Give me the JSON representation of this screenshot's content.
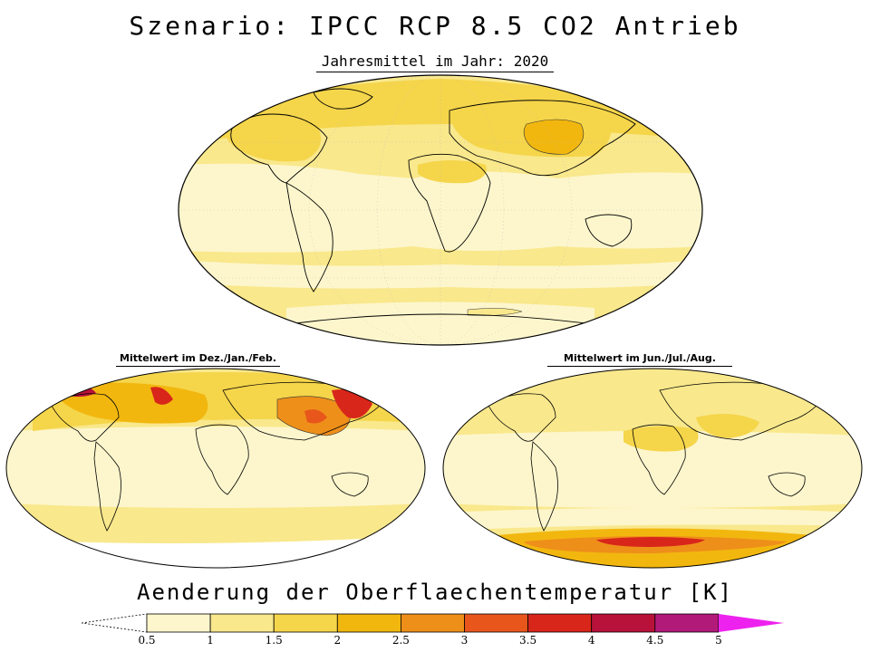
{
  "title": "Szenario: IPCC RCP 8.5 CO2 Antrieb",
  "subtitle": "Jahresmittel im Jahr: 2020",
  "panels": {
    "annual": {
      "label": ""
    },
    "djf": {
      "label": "Mittelwert im Dez./Jan./Feb."
    },
    "jja": {
      "label": "Mittelwert im Jun./Jul./Aug."
    }
  },
  "legend": {
    "title": "Aenderung der Oberflaechentemperatur [K]",
    "ticks": [
      "0.5",
      "1",
      "1.5",
      "2",
      "2.5",
      "3",
      "3.5",
      "4",
      "4.5",
      "5"
    ],
    "colors": {
      "below": "#ffffff",
      "0.5-1": "#fdf6cc",
      "1-1.5": "#f9e88c",
      "1.5-2": "#f5d54a",
      "2-2.5": "#f2b70f",
      "2.5-3": "#ee8f1a",
      "3-3.5": "#e8561c",
      "3.5-4": "#d8261a",
      "4-4.5": "#b8123a",
      "4.5-5": "#b21a7a",
      "above": "#ee22ee"
    }
  }
}
